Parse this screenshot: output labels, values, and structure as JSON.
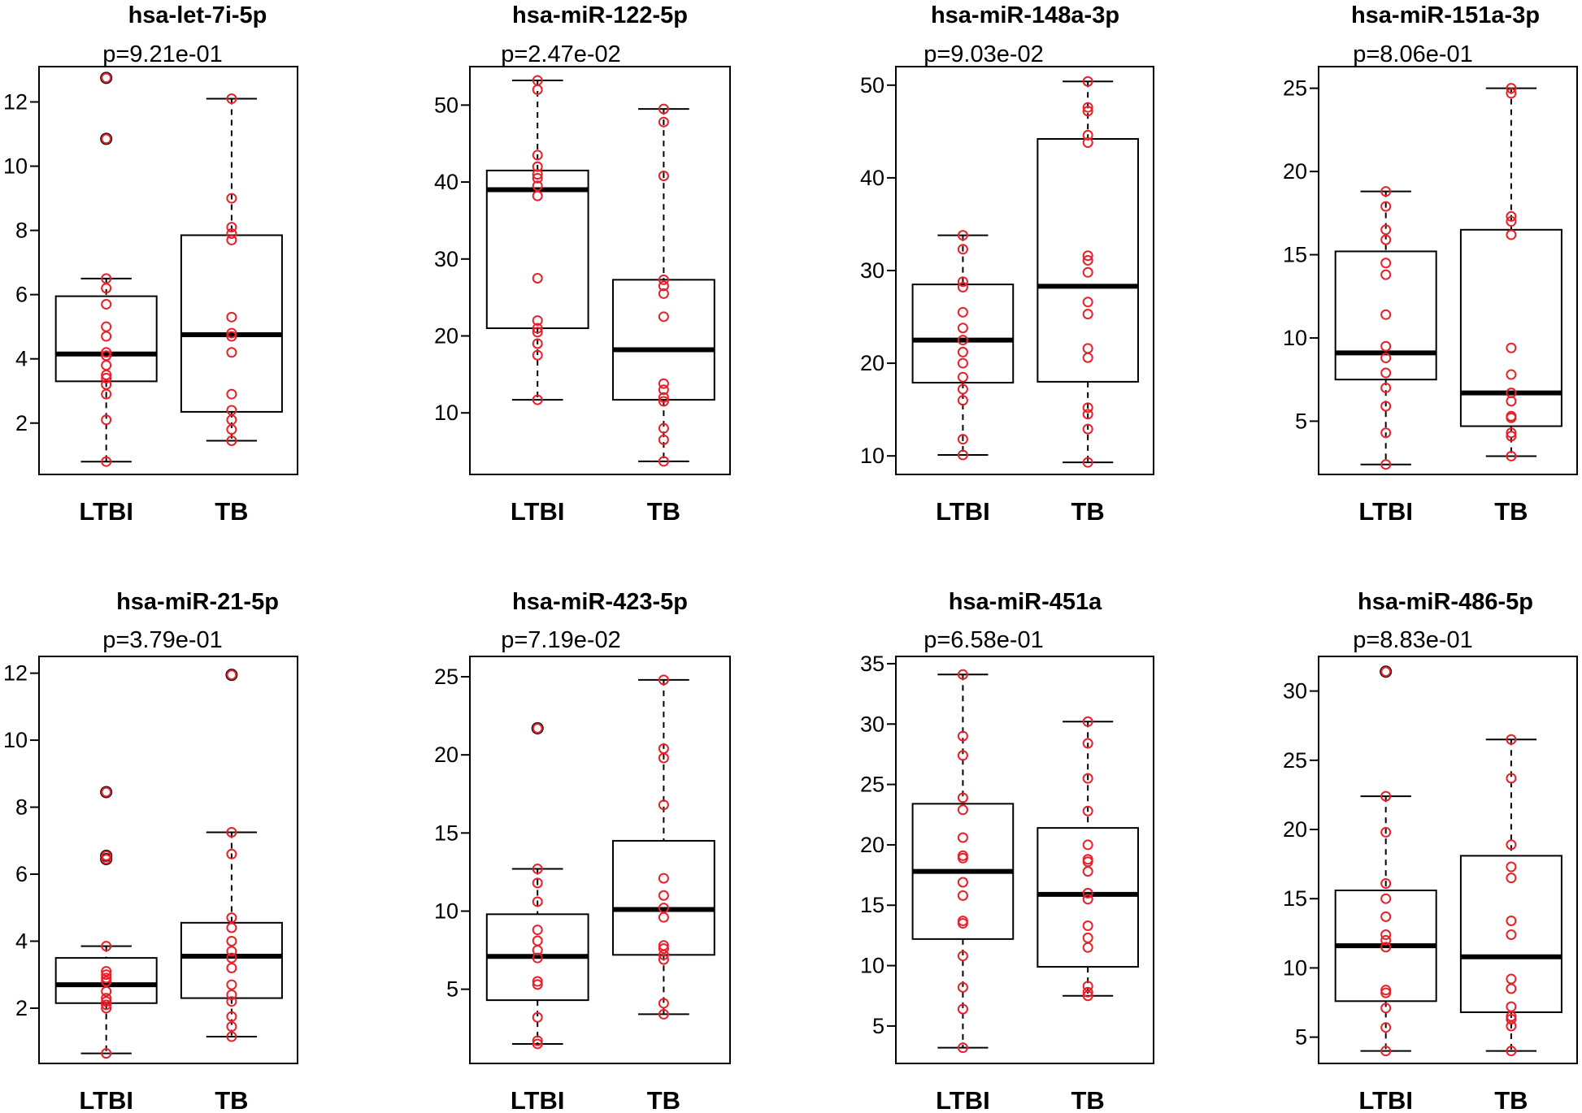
{
  "chart_data": [
    {
      "type": "boxplot",
      "title": "hsa-let-7i-5p",
      "subtitle": "p=9.21e-01",
      "categories": [
        "LTBI",
        "TB"
      ],
      "ylim": [
        0.4,
        13.1
      ],
      "yticks": [
        2,
        4,
        6,
        8,
        10,
        12
      ],
      "boxes": [
        {
          "whisker_low": 0.8,
          "q1": 3.3,
          "median": 4.15,
          "q3": 5.95,
          "whisker_high": 6.5,
          "points": [
            0.8,
            2.1,
            2.9,
            3.2,
            3.4,
            3.5,
            3.8,
            4.1,
            4.2,
            4.7,
            5.0,
            5.7,
            6.2,
            6.5,
            10.85,
            12.75
          ]
        },
        {
          "whisker_low": 1.45,
          "q1": 2.35,
          "median": 4.75,
          "q3": 7.85,
          "whisker_high": 12.1,
          "points": [
            1.45,
            1.8,
            2.1,
            2.4,
            2.9,
            4.2,
            4.7,
            4.8,
            5.3,
            7.7,
            7.9,
            8.1,
            9.0,
            12.1
          ]
        }
      ]
    },
    {
      "type": "boxplot",
      "title": "hsa-miR-122-5p",
      "subtitle": "p=2.47e-02",
      "categories": [
        "LTBI",
        "TB"
      ],
      "ylim": [
        2,
        55
      ],
      "yticks": [
        10,
        20,
        30,
        40,
        50
      ],
      "boxes": [
        {
          "whisker_low": 11.7,
          "q1": 21.0,
          "median": 39.0,
          "q3": 41.5,
          "whisker_high": 53.2,
          "points": [
            11.7,
            17.5,
            19.0,
            20.5,
            21.0,
            22.0,
            27.5,
            38.2,
            39.5,
            40.5,
            41.0,
            42.0,
            43.5,
            52.0,
            53.2
          ]
        },
        {
          "whisker_low": 3.7,
          "q1": 11.7,
          "median": 18.2,
          "q3": 27.3,
          "whisker_high": 49.5,
          "points": [
            3.7,
            6.5,
            8.0,
            11.5,
            12.0,
            13.0,
            13.8,
            22.5,
            25.5,
            26.5,
            27.3,
            40.8,
            47.8,
            49.5
          ]
        }
      ]
    },
    {
      "type": "boxplot",
      "title": "hsa-miR-148a-3p",
      "subtitle": "p=9.03e-02",
      "categories": [
        "LTBI",
        "TB"
      ],
      "ylim": [
        8,
        52
      ],
      "yticks": [
        10,
        20,
        30,
        40,
        50
      ],
      "boxes": [
        {
          "whisker_low": 10.1,
          "q1": 17.9,
          "median": 22.5,
          "q3": 28.5,
          "whisker_high": 33.8,
          "points": [
            10.1,
            11.8,
            16.0,
            17.2,
            18.5,
            20.0,
            21.2,
            22.5,
            23.8,
            25.5,
            28.2,
            28.8,
            32.3,
            33.8
          ]
        },
        {
          "whisker_low": 9.3,
          "q1": 18.0,
          "median": 28.3,
          "q3": 44.2,
          "whisker_high": 50.4,
          "points": [
            9.3,
            12.9,
            14.5,
            15.2,
            20.6,
            21.6,
            25.3,
            26.6,
            29.8,
            31.1,
            31.6,
            43.8,
            44.6,
            47.2,
            47.6,
            50.4
          ]
        }
      ]
    },
    {
      "type": "boxplot",
      "title": "hsa-miR-151a-3p",
      "subtitle": "p=8.06e-01",
      "categories": [
        "LTBI",
        "TB"
      ],
      "ylim": [
        1.8,
        26.3
      ],
      "yticks": [
        5,
        10,
        15,
        20,
        25
      ],
      "boxes": [
        {
          "whisker_low": 2.4,
          "q1": 7.5,
          "median": 9.1,
          "q3": 15.2,
          "whisker_high": 18.8,
          "points": [
            2.4,
            4.3,
            5.9,
            7.0,
            7.9,
            8.8,
            9.5,
            11.4,
            13.8,
            14.5,
            15.9,
            16.5,
            17.9,
            18.8
          ]
        },
        {
          "whisker_low": 2.9,
          "q1": 4.7,
          "median": 6.7,
          "q3": 16.5,
          "whisker_high": 25.0,
          "points": [
            2.9,
            4.1,
            4.3,
            5.2,
            5.3,
            6.2,
            6.7,
            7.8,
            9.4,
            16.2,
            17.0,
            17.3,
            24.7,
            25.0
          ]
        }
      ]
    },
    {
      "type": "boxplot",
      "title": "hsa-miR-21-5p",
      "subtitle": "p=3.79e-01",
      "categories": [
        "LTBI",
        "TB"
      ],
      "ylim": [
        0.35,
        12.5
      ],
      "yticks": [
        2,
        4,
        6,
        8,
        10,
        12
      ],
      "boxes": [
        {
          "whisker_low": 0.65,
          "q1": 2.15,
          "median": 2.7,
          "q3": 3.5,
          "whisker_high": 3.85,
          "points": [
            0.65,
            2.0,
            2.1,
            2.2,
            2.3,
            2.5,
            2.8,
            2.9,
            3.0,
            3.1,
            3.85,
            6.45,
            6.55,
            8.45
          ]
        },
        {
          "whisker_low": 1.15,
          "q1": 2.3,
          "median": 3.55,
          "q3": 4.55,
          "whisker_high": 7.25,
          "points": [
            1.15,
            1.45,
            1.75,
            2.2,
            2.4,
            2.7,
            3.2,
            3.5,
            3.7,
            4.0,
            4.4,
            4.7,
            6.6,
            7.25,
            11.95
          ]
        }
      ]
    },
    {
      "type": "boxplot",
      "title": "hsa-miR-423-5p",
      "subtitle": "p=7.19e-02",
      "categories": [
        "LTBI",
        "TB"
      ],
      "ylim": [
        0.25,
        26.3
      ],
      "yticks": [
        5,
        10,
        15,
        20,
        25
      ],
      "boxes": [
        {
          "whisker_low": 1.5,
          "q1": 4.3,
          "median": 7.1,
          "q3": 9.8,
          "whisker_high": 12.7,
          "points": [
            1.5,
            1.7,
            3.2,
            5.3,
            5.5,
            7.0,
            7.5,
            8.1,
            8.8,
            10.6,
            11.8,
            12.7,
            21.7
          ]
        },
        {
          "whisker_low": 3.4,
          "q1": 7.2,
          "median": 10.1,
          "q3": 14.5,
          "whisker_high": 24.8,
          "points": [
            3.4,
            4.1,
            6.9,
            7.2,
            7.6,
            7.8,
            9.6,
            10.2,
            11.0,
            12.1,
            16.8,
            19.8,
            20.4,
            24.8
          ]
        }
      ]
    },
    {
      "type": "boxplot",
      "title": "hsa-miR-451a",
      "subtitle": "p=6.58e-01",
      "categories": [
        "LTBI",
        "TB"
      ],
      "ylim": [
        1.9,
        35.6
      ],
      "yticks": [
        5,
        10,
        15,
        20,
        25,
        30,
        35
      ],
      "boxes": [
        {
          "whisker_low": 3.2,
          "q1": 12.2,
          "median": 17.8,
          "q3": 23.4,
          "whisker_high": 34.1,
          "points": [
            3.2,
            6.4,
            8.2,
            10.8,
            13.5,
            13.7,
            15.8,
            16.9,
            18.9,
            19.1,
            20.6,
            22.9,
            23.9,
            27.4,
            29.0,
            34.1
          ]
        },
        {
          "whisker_low": 7.5,
          "q1": 9.9,
          "median": 15.9,
          "q3": 21.4,
          "whisker_high": 30.2,
          "points": [
            7.5,
            7.8,
            8.3,
            11.5,
            12.3,
            13.3,
            15.5,
            16.0,
            17.8,
            18.6,
            18.8,
            20.0,
            22.8,
            25.5,
            28.4,
            30.2
          ]
        }
      ]
    },
    {
      "type": "boxplot",
      "title": "hsa-miR-486-5p",
      "subtitle": "p=8.83e-01",
      "categories": [
        "LTBI",
        "TB"
      ],
      "ylim": [
        3.1,
        32.5
      ],
      "yticks": [
        5,
        10,
        15,
        20,
        25,
        30
      ],
      "boxes": [
        {
          "whisker_low": 4.0,
          "q1": 7.6,
          "median": 11.6,
          "q3": 15.6,
          "whisker_high": 22.4,
          "points": [
            4.0,
            5.7,
            7.1,
            8.2,
            8.4,
            11.5,
            12.0,
            12.4,
            13.7,
            15.0,
            16.1,
            19.8,
            22.4,
            31.4
          ]
        },
        {
          "whisker_low": 4.0,
          "q1": 6.8,
          "median": 10.8,
          "q3": 18.1,
          "whisker_high": 26.5,
          "points": [
            4.0,
            5.8,
            6.3,
            6.5,
            7.2,
            8.5,
            9.2,
            12.4,
            13.4,
            16.5,
            17.3,
            18.9,
            23.7,
            26.5
          ]
        }
      ]
    }
  ]
}
